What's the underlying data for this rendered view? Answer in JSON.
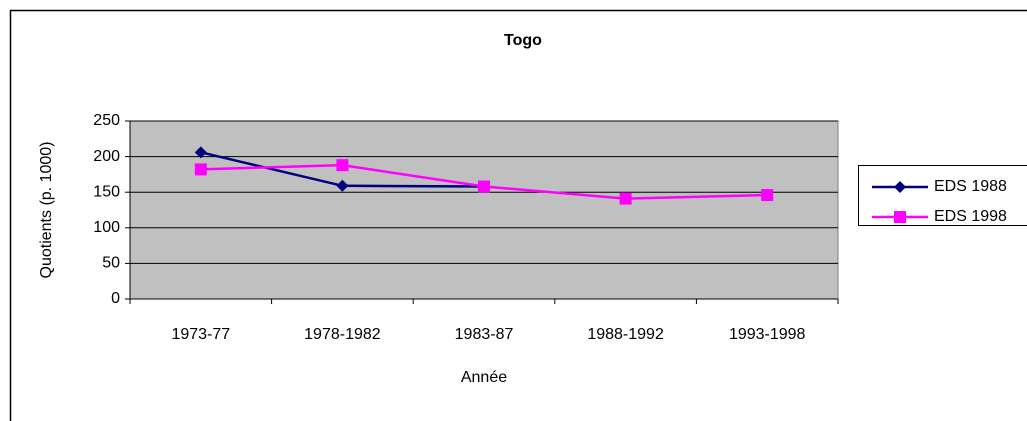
{
  "chart_data": {
    "type": "line",
    "title": "Togo",
    "x_label": "Année",
    "y_label": "Quotients (p. 1000)",
    "categories": [
      "1973-77",
      "1978-1982",
      "1983-87",
      "1988-1992",
      "1993-1998"
    ],
    "series": [
      {
        "name": "EDS 1988",
        "color": "#000080",
        "marker": "diamond",
        "values": [
          206,
          159,
          158,
          null,
          null
        ]
      },
      {
        "name": "EDS 1998",
        "color": "#ff00ff",
        "marker": "square",
        "values": [
          182,
          188,
          158,
          141,
          146
        ]
      }
    ],
    "ylim": [
      0,
      250
    ],
    "yticks": [
      0,
      50,
      100,
      150,
      200,
      250
    ],
    "grid": true,
    "legend": "right"
  }
}
